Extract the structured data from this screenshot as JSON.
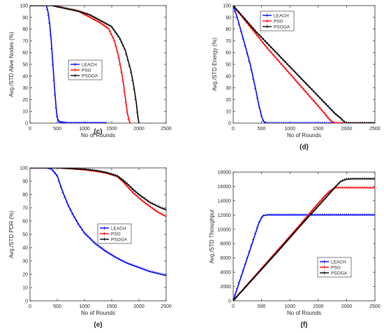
{
  "chart_data": [
    {
      "type": "line",
      "panel_label": "(c)",
      "xlabel": "No of Rounds",
      "ylabel": "Avg./STD Alive Nodes (%)",
      "xlim": [
        0,
        2500
      ],
      "ylim": [
        0,
        100
      ],
      "xticks": [
        "0",
        "500",
        "1000",
        "1500",
        "2000",
        "2500"
      ],
      "yticks": [
        "0",
        "10",
        "20",
        "30",
        "40",
        "50",
        "60",
        "70",
        "80",
        "90",
        "100"
      ],
      "legend_position": "center",
      "series": [
        {
          "name": "LEACH",
          "color": "#0000ff",
          "x": [
            0,
            300,
            330,
            360,
            390,
            420,
            450,
            470,
            490,
            510,
            540,
            600,
            700,
            1000,
            1400
          ],
          "y": [
            100,
            100,
            95,
            85,
            70,
            50,
            30,
            18,
            8,
            3,
            1,
            0.5,
            0,
            0,
            0
          ]
        },
        {
          "name": "PSO",
          "color": "#ff0000",
          "x": [
            0,
            400,
            500,
            700,
            900,
            1100,
            1300,
            1450,
            1550,
            1620,
            1680,
            1720,
            1760,
            1790,
            1820,
            1840
          ],
          "y": [
            100,
            100,
            99,
            97,
            95,
            90,
            85,
            80,
            70,
            58,
            44,
            32,
            18,
            8,
            2,
            0
          ]
        },
        {
          "name": "PSOGA",
          "color": "#000000",
          "x": [
            0,
            400,
            500,
            700,
            900,
            1100,
            1300,
            1500,
            1650,
            1750,
            1850,
            1900,
            1950,
            1980,
            2000
          ],
          "y": [
            100,
            100,
            99,
            97,
            95,
            92,
            87,
            82,
            72,
            62,
            45,
            33,
            18,
            6,
            0
          ]
        }
      ]
    },
    {
      "type": "line",
      "panel_label": "(d)",
      "xlabel": "No of Rounds",
      "ylabel": "Avg./STD Energy (%)",
      "xlim": [
        0,
        2500
      ],
      "ylim": [
        0,
        100
      ],
      "xticks": [
        "0",
        "500",
        "1000",
        "1500",
        "2000",
        "2500"
      ],
      "yticks": [
        "0",
        "10",
        "20",
        "30",
        "40",
        "50",
        "60",
        "70",
        "80",
        "90",
        "100"
      ],
      "legend_position": "top-left",
      "series": [
        {
          "name": "LEACH",
          "color": "#0000ff",
          "x": [
            0,
            50,
            100,
            200,
            300,
            400,
            450,
            500,
            530,
            560,
            600,
            1000,
            2500
          ],
          "y": [
            100,
            93,
            85,
            68,
            50,
            28,
            16,
            6,
            2,
            0.5,
            0,
            0,
            0
          ]
        },
        {
          "name": "PSO",
          "color": "#ff0000",
          "x": [
            0,
            200,
            400,
            600,
            800,
            1000,
            1200,
            1400,
            1600,
            1700,
            1750,
            1800,
            2500
          ],
          "y": [
            100,
            88,
            76,
            64,
            53,
            42,
            31,
            20,
            9,
            3,
            1,
            0,
            0
          ]
        },
        {
          "name": "PSOGA",
          "color": "#000000",
          "x": [
            0,
            200,
            400,
            600,
            800,
            1000,
            1200,
            1400,
            1600,
            1800,
            1900,
            1950,
            2000,
            2500
          ],
          "y": [
            100,
            89,
            78,
            68,
            58,
            48,
            38,
            28,
            18,
            8,
            4,
            1.5,
            0,
            0
          ]
        }
      ]
    },
    {
      "type": "line",
      "panel_label": "(e)",
      "xlabel": "No of Rounds",
      "ylabel": "Avg./STD PDR (%)",
      "xlim": [
        0,
        2500
      ],
      "ylim": [
        0,
        100
      ],
      "xticks": [
        "0",
        "500",
        "1000",
        "1500",
        "2000",
        "2500"
      ],
      "yticks": [
        "0",
        "10",
        "20",
        "30",
        "40",
        "50",
        "60",
        "70",
        "80",
        "90",
        "100"
      ],
      "legend_position": "center-right",
      "series": [
        {
          "name": "LEACH",
          "color": "#0000ff",
          "x": [
            0,
            300,
            400,
            500,
            600,
            700,
            800,
            900,
            1000,
            1200,
            1400,
            1600,
            1800,
            2000,
            2200,
            2500
          ],
          "y": [
            100,
            100,
            99,
            94,
            82,
            72,
            64,
            57,
            51,
            43,
            37,
            32,
            28,
            25,
            22,
            19
          ]
        },
        {
          "name": "PSO",
          "color": "#ff0000",
          "x": [
            0,
            500,
            1000,
            1200,
            1400,
            1600,
            1700,
            1800,
            1900,
            2000,
            2100,
            2200,
            2300,
            2400,
            2500
          ],
          "y": [
            100,
            100,
            98.5,
            97.5,
            96,
            93.5,
            90,
            85.5,
            81,
            77.5,
            74,
            71,
            68,
            65.5,
            63.5
          ]
        },
        {
          "name": "PSOGA",
          "color": "#000000",
          "x": [
            0,
            500,
            1000,
            1200,
            1400,
            1600,
            1700,
            1800,
            1900,
            2000,
            2100,
            2200,
            2300,
            2400,
            2500
          ],
          "y": [
            100,
            100,
            99,
            98,
            96.5,
            94,
            91,
            87.5,
            83.5,
            80,
            77,
            74,
            72,
            70,
            68.5
          ]
        }
      ]
    },
    {
      "type": "line",
      "panel_label": "(f)",
      "xlabel": "No of Rounds",
      "ylabel": "Avg./STD Throughput",
      "xlim": [
        0,
        2500
      ],
      "ylim": [
        0,
        18000
      ],
      "xticks": [
        "0",
        "500",
        "1000",
        "1500",
        "2000",
        "2500"
      ],
      "yticks": [
        "0",
        "2000",
        "4000",
        "6000",
        "8000",
        "10000",
        "12000",
        "14000",
        "16000",
        "18000"
      ],
      "legend_position": "bottom-right",
      "series": [
        {
          "name": "LEACH",
          "color": "#0000ff",
          "x": [
            0,
            100,
            200,
            300,
            400,
            450,
            500,
            530,
            560,
            600,
            2500
          ],
          "y": [
            0,
            2400,
            4800,
            7200,
            9600,
            10800,
            11600,
            11900,
            11950,
            12000,
            12000
          ]
        },
        {
          "name": "PSO",
          "color": "#ff0000",
          "x": [
            0,
            400,
            800,
            1200,
            1400,
            1600,
            1700,
            1800,
            2000,
            2500
          ],
          "y": [
            0,
            3600,
            7200,
            10800,
            12700,
            14500,
            15300,
            15800,
            15800,
            15800
          ]
        },
        {
          "name": "PSOGA",
          "color": "#000000",
          "x": [
            0,
            400,
            800,
            1200,
            1600,
            1800,
            1900,
            2000,
            2100,
            2500
          ],
          "y": [
            0,
            3500,
            7000,
            10600,
            14100,
            15900,
            16700,
            17000,
            17050,
            17050
          ]
        }
      ]
    }
  ]
}
